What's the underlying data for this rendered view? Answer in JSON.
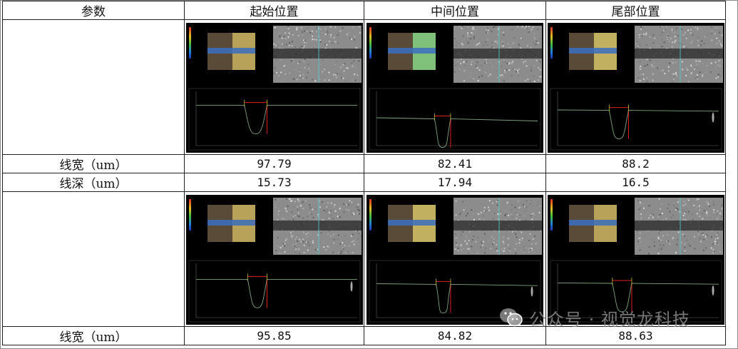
{
  "table": {
    "headers": [
      "参数",
      "起始位置",
      "中间位置",
      "尾部位置"
    ],
    "rows": [
      {
        "label": "线宽（um）",
        "values": [
          "97.79",
          "82.41",
          "88.2"
        ]
      },
      {
        "label": "线深（um）",
        "values": [
          "15.73",
          "17.94",
          "16.5"
        ]
      },
      {
        "label": "线宽（um）",
        "values": [
          "95.85",
          "84.82",
          "88.63"
        ]
      }
    ]
  },
  "watermark": {
    "text": "公众号 · 视觉龙科技",
    "icon": "wechat-icon"
  },
  "colors": {
    "border": "#222222",
    "panel_bg": "#000000",
    "measure_red": "#e02020",
    "profile_green": "#7fa37f"
  }
}
